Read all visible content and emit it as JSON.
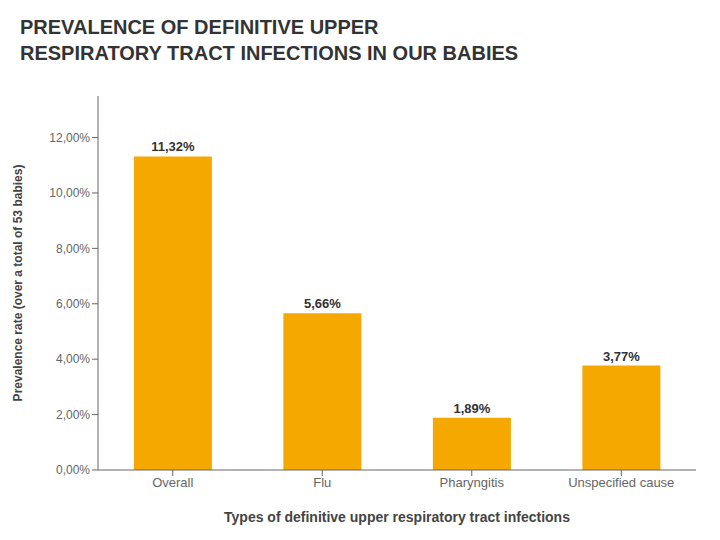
{
  "chart_data": {
    "type": "bar",
    "title": "PREVALENCE OF DEFINITIVE UPPER\nRESPIRATORY TRACT INFECTIONS IN OUR BABIES",
    "xlabel": "Types of definitive upper respiratory tract infections",
    "ylabel": "Prevalence  rate (over a total of 53 babies)",
    "categories": [
      "Overall",
      "Flu",
      "Pharyngitis",
      "Unspecified cause"
    ],
    "values": [
      11.32,
      5.66,
      1.89,
      3.77
    ],
    "value_labels": [
      "11,32%",
      "5,66%",
      "1,89%",
      "3,77%"
    ],
    "data_labels": true,
    "color": "#F5A800",
    "ylim": [
      0,
      13.5
    ],
    "yticks": [
      {
        "value": 0,
        "label": "0,00%"
      },
      {
        "value": 2,
        "label": "2,00%"
      },
      {
        "value": 4,
        "label": "4,00%"
      },
      {
        "value": 6,
        "label": "6,00%"
      },
      {
        "value": 8,
        "label": "8,00%"
      },
      {
        "value": 10,
        "label": "10,00%"
      },
      {
        "value": 12,
        "label": "12,00%"
      }
    ],
    "grid": false
  }
}
